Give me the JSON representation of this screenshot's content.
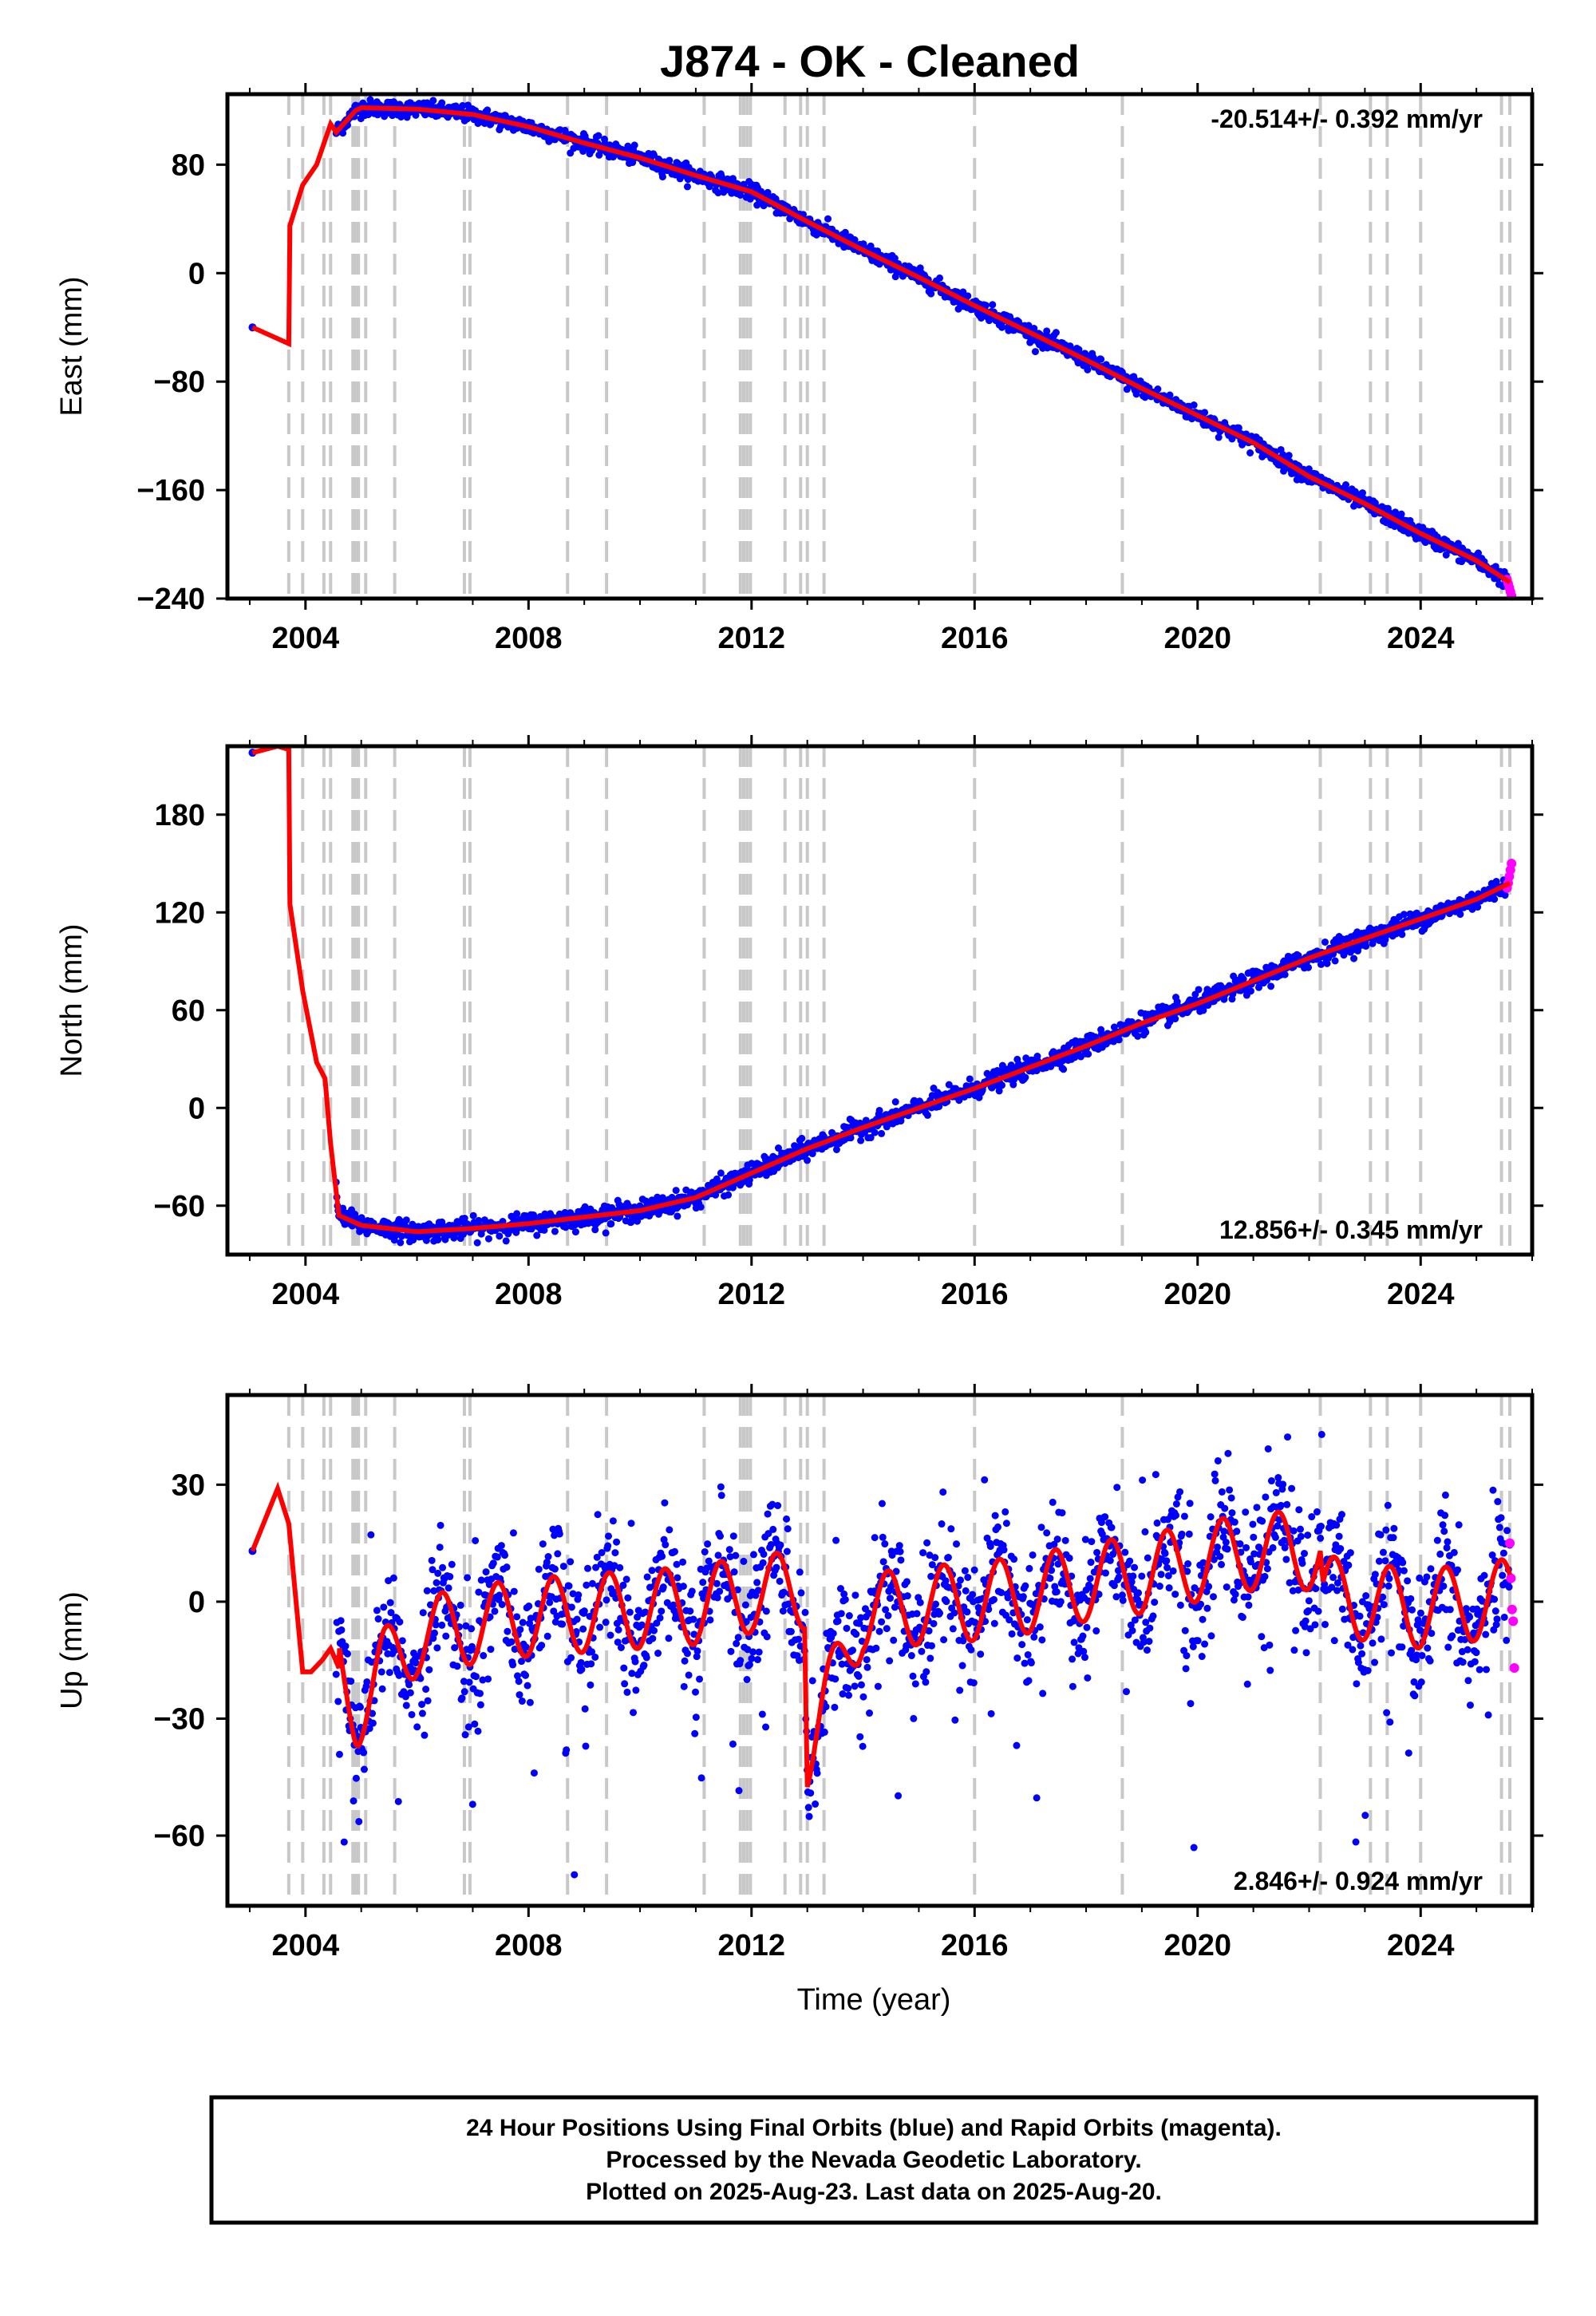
{
  "title": "J874  - OK - Cleaned",
  "x_axis_label": "Time (year)",
  "footer": {
    "line1": "24 Hour Positions Using Final Orbits (blue) and Rapid Orbits (magenta).",
    "line2": "Processed by the Nevada Geodetic Laboratory.",
    "line3": "Plotted on 2025-Aug-23. Last data on 2025-Aug-20."
  },
  "colors": {
    "final_orbits": "#0000ff",
    "rapid_orbits": "#ff00ff",
    "model": "#ff0000",
    "step_lines": "#c8c8c8",
    "frame": "#000000"
  },
  "chart_data": [
    {
      "type": "scatter",
      "ylabel": "East (mm)",
      "rate_text": "-20.514+/- 0.392 mm/yr",
      "rate_position": "top-right",
      "xlim": [
        2002.6,
        2026.0
      ],
      "ylim": [
        -240,
        132
      ],
      "xticks": [
        2004,
        2008,
        2012,
        2016,
        2020,
        2024
      ],
      "yticks": [
        80,
        0,
        -80,
        -160,
        -240
      ],
      "ytick_labels": [
        "80",
        "0",
        "−80",
        "−160",
        "−240"
      ],
      "x": [
        2003.05,
        2003.7,
        2003.72,
        2003.95,
        2004.2,
        2004.45,
        2004.55,
        2004.9,
        2005.0,
        2006.0,
        2007.0,
        2008.0,
        2009.0,
        2010.0,
        2011.0,
        2012.0,
        2013.0,
        2014.0,
        2015.0,
        2016.0,
        2017.0,
        2018.0,
        2019.0,
        2020.0,
        2021.0,
        2022.0,
        2023.0,
        2024.0,
        2025.0,
        2025.6
      ],
      "model": [
        -40,
        -52,
        35,
        65,
        80,
        110,
        104,
        120,
        122,
        121,
        117,
        108,
        96,
        85,
        72,
        60,
        38,
        17,
        -3,
        -24,
        -44,
        -64,
        -85,
        -105,
        -125,
        -150,
        -170,
        -192,
        -212,
        -228
      ],
      "scatter_sd": 3,
      "rapid_x_start": 2025.55,
      "rapid_values": [
        -226,
        -229,
        -232,
        -235,
        -238
      ]
    },
    {
      "type": "scatter",
      "ylabel": "North (mm)",
      "rate_text": "12.856+/- 0.345 mm/yr",
      "rate_position": "bottom-right",
      "xlim": [
        2002.6,
        2026.0
      ],
      "ylim": [
        -90,
        222
      ],
      "xticks": [
        2004,
        2008,
        2012,
        2016,
        2020,
        2024
      ],
      "yticks": [
        180,
        120,
        60,
        0,
        -60
      ],
      "ytick_labels": [
        "180",
        "120",
        "60",
        "0",
        "−60"
      ],
      "x": [
        2003.05,
        2003.5,
        2003.7,
        2003.72,
        2003.95,
        2004.2,
        2004.35,
        2004.45,
        2004.6,
        2005.0,
        2006.0,
        2007.0,
        2008.0,
        2009.0,
        2010.0,
        2011.0,
        2012.0,
        2013.0,
        2014.0,
        2015.0,
        2016.0,
        2017.0,
        2018.0,
        2019.0,
        2020.0,
        2021.0,
        2022.0,
        2023.0,
        2024.0,
        2025.0,
        2025.6
      ],
      "model": [
        218,
        222,
        220,
        125,
        72,
        28,
        18,
        -22,
        -66,
        -72,
        -76,
        -74,
        -71,
        -67,
        -63,
        -55,
        -40,
        -25,
        -12,
        0,
        12,
        25,
        38,
        52,
        64,
        78,
        92,
        104,
        116,
        128,
        138
      ],
      "scatter_sd": 3,
      "rapid_x_start": 2025.55,
      "rapid_values": [
        135,
        138,
        142,
        146,
        150
      ]
    },
    {
      "type": "scatter",
      "ylabel": "Up (mm)",
      "rate_text": "2.846+/- 0.924 mm/yr",
      "rate_position": "bottom-right",
      "xlim": [
        2002.6,
        2026.0
      ],
      "ylim": [
        -78,
        53
      ],
      "xticks": [
        2004,
        2008,
        2012,
        2016,
        2020,
        2024
      ],
      "yticks": [
        30,
        0,
        -30,
        -60
      ],
      "ytick_labels": [
        "30",
        "0",
        "−30",
        "−60"
      ],
      "x": [
        2003.05,
        2003.5,
        2003.7,
        2003.95,
        2004.1,
        2004.3,
        2004.45,
        2004.9,
        2004.95,
        2005.4,
        2006.0,
        2007.0,
        2008.0,
        2009.0,
        2010.0,
        2011.0,
        2012.0,
        2012.95,
        2013.0,
        2014.0,
        2015.0,
        2016.0,
        2017.0,
        2018.0,
        2019.0,
        2020.0,
        2021.0,
        2022.0,
        2022.2,
        2022.25,
        2023.0,
        2024.0,
        2025.0,
        2025.6
      ],
      "model": [
        13,
        29,
        20,
        -18,
        -18,
        -15,
        -12,
        -27,
        -27,
        -17,
        -9,
        -6,
        -4,
        -3,
        -2,
        -1,
        2,
        3,
        -38,
        -3,
        -1,
        0,
        2,
        5,
        7,
        10,
        13,
        13,
        13,
        2,
        0,
        -2,
        0,
        1
      ],
      "seasonal_amplitude": 10,
      "scatter_sd": 8,
      "rapid_x_start": 2025.6,
      "rapid_values": [
        15,
        6,
        -2,
        -5,
        -17
      ]
    }
  ],
  "step_epochs": [
    2003.7,
    2003.95,
    2004.33,
    2004.45,
    2004.85,
    2004.9,
    2004.95,
    2005.08,
    2005.6,
    2006.85,
    2006.95,
    2008.7,
    2009.4,
    2011.15,
    2011.8,
    2011.86,
    2011.92,
    2011.98,
    2012.6,
    2012.88,
    2013.0,
    2013.3,
    2016.0,
    2018.65,
    2022.2,
    2023.1,
    2023.4,
    2024.0,
    2025.45,
    2025.6
  ]
}
